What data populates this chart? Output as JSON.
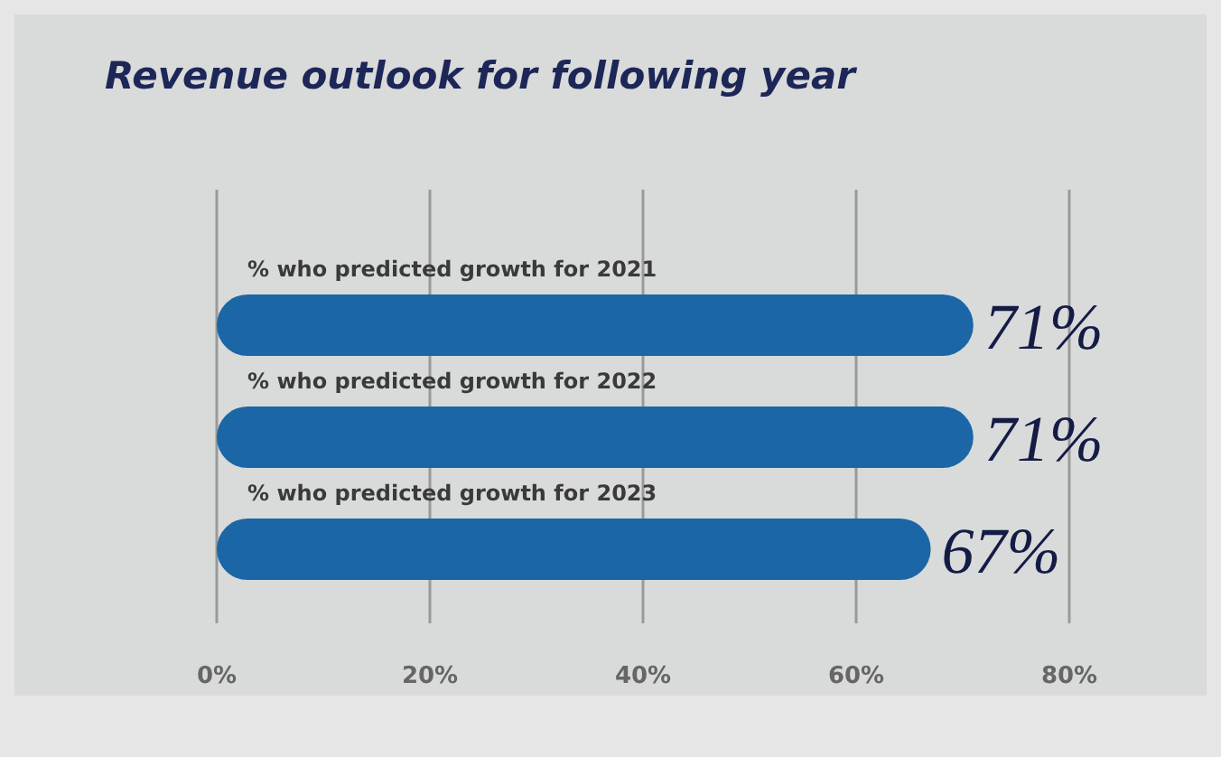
{
  "chart_data": {
    "type": "bar",
    "orientation": "horizontal",
    "title": "Revenue outlook for following year",
    "categories": [
      "% who predicted growth for 2021",
      "% who predicted growth for 2022",
      "% who predicted growth for 2023"
    ],
    "values": [
      71,
      71,
      67
    ],
    "color": "#1b66a6",
    "value_labels": [
      "71%",
      "71%",
      "67%"
    ],
    "xlim": [
      0,
      80
    ],
    "xticks": [
      {
        "value": 0,
        "label": "0%"
      },
      {
        "value": 20,
        "label": "20%"
      },
      {
        "value": 40,
        "label": "40%"
      },
      {
        "value": 60,
        "label": "60%"
      },
      {
        "value": 80,
        "label": "80%"
      }
    ],
    "grid": "x"
  }
}
